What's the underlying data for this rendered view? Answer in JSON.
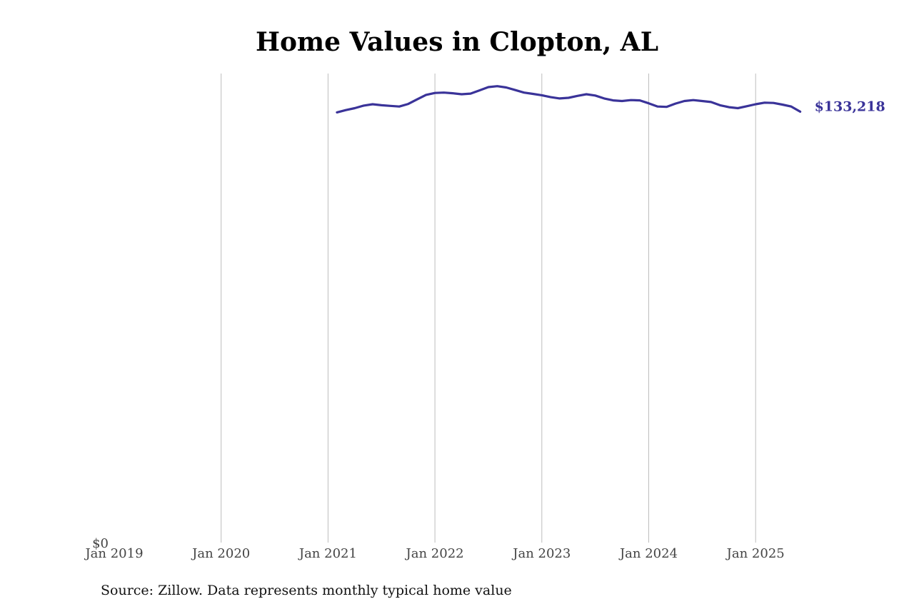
{
  "chart_data": {
    "type": "line",
    "title": "Home Values in Clopton, AL",
    "source": "Source: Zillow. Data represents monthly typical home value",
    "x_ticks": [
      "Jan 2019",
      "Jan 2020",
      "Jan 2021",
      "Jan 2022",
      "Jan 2023",
      "Jan 2024",
      "Jan 2025"
    ],
    "y_ticks": [
      "$0"
    ],
    "xlim": [
      "2019-01",
      "2026-01"
    ],
    "ylim": [
      0,
      145000
    ],
    "grid": "vertical",
    "line_color": "#3a3399",
    "end_label": "$133,218",
    "series": [
      {
        "x": [
          "2021-02",
          "2021-03",
          "2021-04",
          "2021-05",
          "2021-06",
          "2021-07",
          "2021-08",
          "2021-09",
          "2021-10",
          "2021-11",
          "2021-12",
          "2022-01",
          "2022-02",
          "2022-03",
          "2022-04",
          "2022-05",
          "2022-06",
          "2022-07",
          "2022-08",
          "2022-09",
          "2022-10",
          "2022-11",
          "2022-12",
          "2023-01",
          "2023-02",
          "2023-03",
          "2023-04",
          "2023-05",
          "2023-06",
          "2023-07",
          "2023-08",
          "2023-09",
          "2023-10",
          "2023-11",
          "2023-12",
          "2024-01",
          "2024-02",
          "2024-03",
          "2024-04",
          "2024-05",
          "2024-06",
          "2024-07",
          "2024-08",
          "2024-09",
          "2024-10",
          "2024-11",
          "2024-12",
          "2025-01",
          "2025-02",
          "2025-03",
          "2025-04",
          "2025-05",
          "2025-06"
        ],
        "values": [
          133000,
          133700,
          134300,
          135100,
          135500,
          135200,
          135000,
          134800,
          135600,
          137000,
          138400,
          139000,
          139100,
          138900,
          138600,
          138800,
          139800,
          140800,
          141100,
          140700,
          139900,
          139100,
          138700,
          138300,
          137700,
          137300,
          137500,
          138100,
          138600,
          138200,
          137300,
          136700,
          136500,
          136800,
          136700,
          135800,
          134800,
          134700,
          135700,
          136500,
          136800,
          136500,
          136200,
          135200,
          134600,
          134300,
          134900,
          135500,
          136000,
          135900,
          135400,
          134800,
          133218
        ]
      }
    ]
  }
}
